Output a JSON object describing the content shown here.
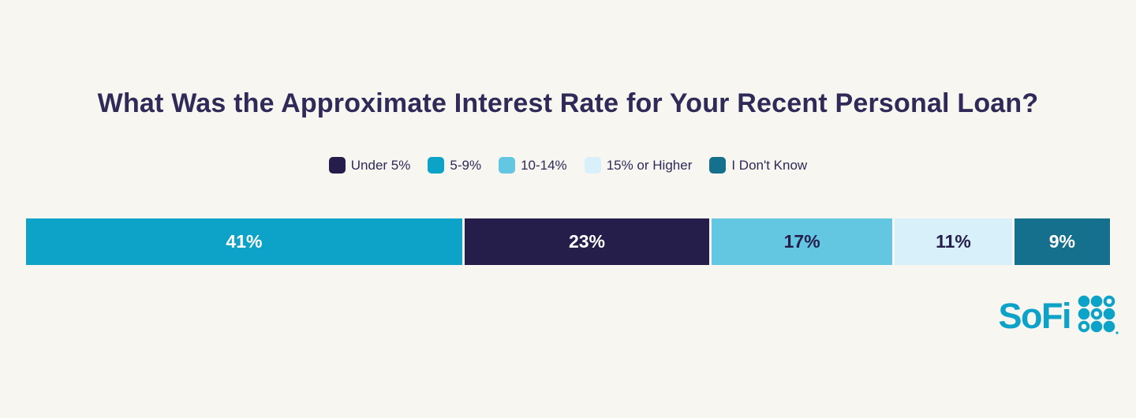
{
  "chart_data": {
    "type": "bar",
    "subtype": "horizontal-stacked-single-bar",
    "title": "What Was the Approximate Interest Rate for Your Recent Personal Loan?",
    "legend_position": "top-center",
    "grid": false,
    "axes_visible": false,
    "categories": [
      "Under 5%",
      "5-9%",
      "10-14%",
      "15% or Higher",
      "I Don't Know"
    ],
    "category_values": [
      23,
      41,
      17,
      11,
      9
    ],
    "legend": [
      {
        "label": "Under 5%",
        "color": "#251e4b"
      },
      {
        "label": "5-9%",
        "color": "#0da2c8"
      },
      {
        "label": "10-14%",
        "color": "#64c7e2"
      },
      {
        "label": "15% or Higher",
        "color": "#d7f0f9"
      },
      {
        "label": "I Don't Know",
        "color": "#15708d"
      }
    ],
    "segments_in_bar_order": [
      {
        "category": "5-9%",
        "value": 41,
        "display_label": "41%",
        "color": "#0da2c8",
        "text_color": "#ffffff"
      },
      {
        "category": "Under 5%",
        "value": 23,
        "display_label": "23%",
        "color": "#251e4b",
        "text_color": "#ffffff"
      },
      {
        "category": "10-14%",
        "value": 17,
        "display_label": "17%",
        "color": "#64c7e2",
        "text_color": "#251e4b"
      },
      {
        "category": "15% or Higher",
        "value": 11,
        "display_label": "11%",
        "color": "#d7f0f9",
        "text_color": "#251e4b"
      },
      {
        "category": "I Don't Know",
        "value": 9,
        "display_label": "9%",
        "color": "#15708d",
        "text_color": "#ffffff"
      }
    ]
  },
  "branding": {
    "wordmark": "SoFi",
    "logo_icon": "sofi-dot-grid-icon",
    "brand_color": "#0da2c8"
  },
  "colors": {
    "background": "#f8f6f0",
    "title_text": "#2f2a58",
    "teal": "#0da2c8",
    "navy": "#251e4b",
    "light_blue": "#64c7e2",
    "pale_blue": "#d7f0f9",
    "dark_teal": "#15708d"
  }
}
